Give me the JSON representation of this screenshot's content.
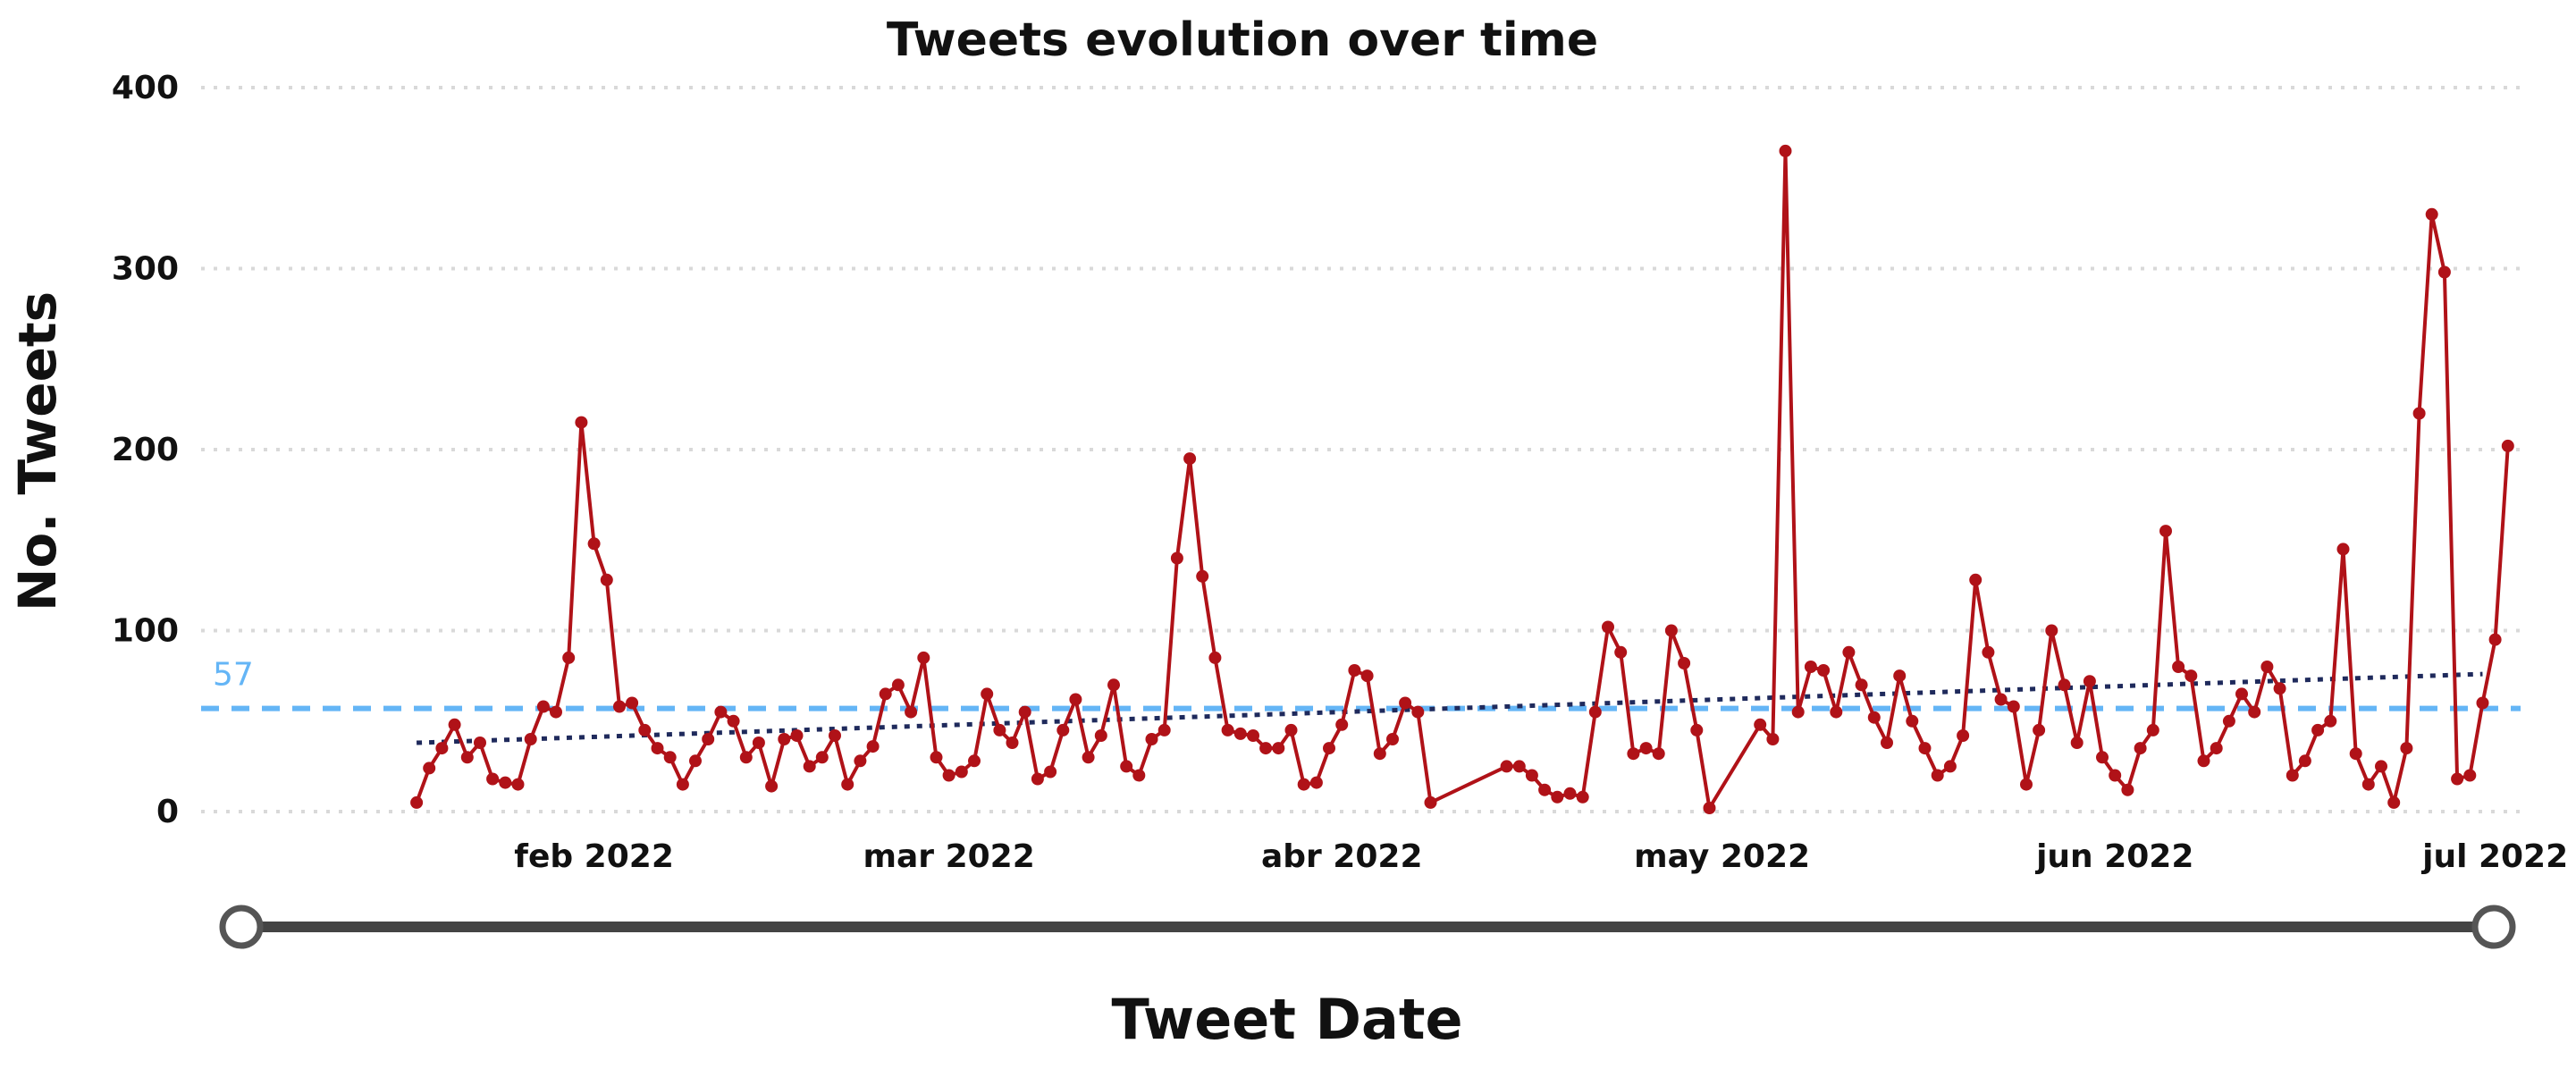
{
  "chart_data": {
    "type": "line",
    "title": "Tweets evolution over time",
    "xlabel": "Tweet Date",
    "ylabel": "No. Tweets",
    "ylim": [
      0,
      400
    ],
    "yticks": [
      0,
      100,
      200,
      300,
      400
    ],
    "xlim": [
      "2022-01-01",
      "2022-07-03"
    ],
    "xticks": [
      {
        "date": "2022-02-01",
        "label": "feb 2022"
      },
      {
        "date": "2022-03-01",
        "label": "mar 2022"
      },
      {
        "date": "2022-04-01",
        "label": "abr 2022"
      },
      {
        "date": "2022-05-01",
        "label": "may 2022"
      },
      {
        "date": "2022-06-01",
        "label": "jun 2022"
      },
      {
        "date": "2022-07-01",
        "label": "jul 2022"
      }
    ],
    "grid": true,
    "mean_line": {
      "value": 57,
      "label": "57",
      "color": "#64b5f6"
    },
    "trend_line": {
      "start": [
        "2022-01-18",
        38
      ],
      "end": [
        "2022-06-30",
        76
      ],
      "color": "#1f2a5c"
    },
    "series": [
      {
        "color": "#b01218",
        "points": [
          [
            "2022-01-18",
            5
          ],
          [
            "2022-01-19",
            24
          ],
          [
            "2022-01-20",
            35
          ],
          [
            "2022-01-21",
            48
          ],
          [
            "2022-01-22",
            30
          ],
          [
            "2022-01-23",
            38
          ],
          [
            "2022-01-24",
            18
          ],
          [
            "2022-01-25",
            16
          ],
          [
            "2022-01-26",
            15
          ],
          [
            "2022-01-27",
            40
          ],
          [
            "2022-01-28",
            58
          ],
          [
            "2022-01-29",
            55
          ],
          [
            "2022-01-30",
            85
          ],
          [
            "2022-01-31",
            215
          ],
          [
            "2022-02-01",
            148
          ],
          [
            "2022-02-02",
            128
          ],
          [
            "2022-02-03",
            58
          ],
          [
            "2022-02-04",
            60
          ],
          [
            "2022-02-05",
            45
          ],
          [
            "2022-02-06",
            35
          ],
          [
            "2022-02-07",
            30
          ],
          [
            "2022-02-08",
            15
          ],
          [
            "2022-02-09",
            28
          ],
          [
            "2022-02-10",
            40
          ],
          [
            "2022-02-11",
            55
          ],
          [
            "2022-02-12",
            50
          ],
          [
            "2022-02-13",
            30
          ],
          [
            "2022-02-14",
            38
          ],
          [
            "2022-02-15",
            14
          ],
          [
            "2022-02-16",
            40
          ],
          [
            "2022-02-17",
            42
          ],
          [
            "2022-02-18",
            25
          ],
          [
            "2022-02-19",
            30
          ],
          [
            "2022-02-20",
            42
          ],
          [
            "2022-02-21",
            15
          ],
          [
            "2022-02-22",
            28
          ],
          [
            "2022-02-23",
            36
          ],
          [
            "2022-02-24",
            65
          ],
          [
            "2022-02-25",
            70
          ],
          [
            "2022-02-26",
            55
          ],
          [
            "2022-02-27",
            85
          ],
          [
            "2022-02-28",
            30
          ],
          [
            "2022-03-01",
            20
          ],
          [
            "2022-03-02",
            22
          ],
          [
            "2022-03-03",
            28
          ],
          [
            "2022-03-04",
            65
          ],
          [
            "2022-03-05",
            45
          ],
          [
            "2022-03-06",
            38
          ],
          [
            "2022-03-07",
            55
          ],
          [
            "2022-03-08",
            18
          ],
          [
            "2022-03-09",
            22
          ],
          [
            "2022-03-10",
            45
          ],
          [
            "2022-03-11",
            62
          ],
          [
            "2022-03-12",
            30
          ],
          [
            "2022-03-13",
            42
          ],
          [
            "2022-03-14",
            70
          ],
          [
            "2022-03-15",
            25
          ],
          [
            "2022-03-16",
            20
          ],
          [
            "2022-03-17",
            40
          ],
          [
            "2022-03-18",
            45
          ],
          [
            "2022-03-19",
            140
          ],
          [
            "2022-03-20",
            195
          ],
          [
            "2022-03-21",
            130
          ],
          [
            "2022-03-22",
            85
          ],
          [
            "2022-03-23",
            45
          ],
          [
            "2022-03-24",
            43
          ],
          [
            "2022-03-25",
            42
          ],
          [
            "2022-03-26",
            35
          ],
          [
            "2022-03-27",
            35
          ],
          [
            "2022-03-28",
            45
          ],
          [
            "2022-03-29",
            15
          ],
          [
            "2022-03-30",
            16
          ],
          [
            "2022-03-31",
            35
          ],
          [
            "2022-04-01",
            48
          ],
          [
            "2022-04-02",
            78
          ],
          [
            "2022-04-03",
            75
          ],
          [
            "2022-04-04",
            32
          ],
          [
            "2022-04-05",
            40
          ],
          [
            "2022-04-06",
            60
          ],
          [
            "2022-04-07",
            55
          ],
          [
            "2022-04-08",
            5
          ],
          [
            "2022-04-14",
            25
          ],
          [
            "2022-04-15",
            25
          ],
          [
            "2022-04-16",
            20
          ],
          [
            "2022-04-17",
            12
          ],
          [
            "2022-04-18",
            8
          ],
          [
            "2022-04-19",
            10
          ],
          [
            "2022-04-20",
            8
          ],
          [
            "2022-04-21",
            55
          ],
          [
            "2022-04-22",
            102
          ],
          [
            "2022-04-23",
            88
          ],
          [
            "2022-04-24",
            32
          ],
          [
            "2022-04-25",
            35
          ],
          [
            "2022-04-26",
            32
          ],
          [
            "2022-04-27",
            100
          ],
          [
            "2022-04-28",
            82
          ],
          [
            "2022-04-29",
            45
          ],
          [
            "2022-04-30",
            2
          ],
          [
            "2022-05-04",
            48
          ],
          [
            "2022-05-05",
            40
          ],
          [
            "2022-05-06",
            365
          ],
          [
            "2022-05-07",
            55
          ],
          [
            "2022-05-08",
            80
          ],
          [
            "2022-05-09",
            78
          ],
          [
            "2022-05-10",
            55
          ],
          [
            "2022-05-11",
            88
          ],
          [
            "2022-05-12",
            70
          ],
          [
            "2022-05-13",
            52
          ],
          [
            "2022-05-14",
            38
          ],
          [
            "2022-05-15",
            75
          ],
          [
            "2022-05-16",
            50
          ],
          [
            "2022-05-17",
            35
          ],
          [
            "2022-05-18",
            20
          ],
          [
            "2022-05-19",
            25
          ],
          [
            "2022-05-20",
            42
          ],
          [
            "2022-05-21",
            128
          ],
          [
            "2022-05-22",
            88
          ],
          [
            "2022-05-23",
            62
          ],
          [
            "2022-05-24",
            58
          ],
          [
            "2022-05-25",
            15
          ],
          [
            "2022-05-26",
            45
          ],
          [
            "2022-05-27",
            100
          ],
          [
            "2022-05-28",
            70
          ],
          [
            "2022-05-29",
            38
          ],
          [
            "2022-05-30",
            72
          ],
          [
            "2022-05-31",
            30
          ],
          [
            "2022-06-01",
            20
          ],
          [
            "2022-06-02",
            12
          ],
          [
            "2022-06-03",
            35
          ],
          [
            "2022-06-04",
            45
          ],
          [
            "2022-06-05",
            155
          ],
          [
            "2022-06-06",
            80
          ],
          [
            "2022-06-07",
            75
          ],
          [
            "2022-06-08",
            28
          ],
          [
            "2022-06-09",
            35
          ],
          [
            "2022-06-10",
            50
          ],
          [
            "2022-06-11",
            65
          ],
          [
            "2022-06-12",
            55
          ],
          [
            "2022-06-13",
            80
          ],
          [
            "2022-06-14",
            68
          ],
          [
            "2022-06-15",
            20
          ],
          [
            "2022-06-16",
            28
          ],
          [
            "2022-06-17",
            45
          ],
          [
            "2022-06-18",
            50
          ],
          [
            "2022-06-19",
            145
          ],
          [
            "2022-06-20",
            32
          ],
          [
            "2022-06-21",
            15
          ],
          [
            "2022-06-22",
            25
          ],
          [
            "2022-06-23",
            5
          ],
          [
            "2022-06-24",
            35
          ],
          [
            "2022-06-25",
            220
          ],
          [
            "2022-06-26",
            330
          ],
          [
            "2022-06-27",
            298
          ],
          [
            "2022-06-28",
            18
          ],
          [
            "2022-06-29",
            20
          ],
          [
            "2022-06-30",
            60
          ],
          [
            "2022-07-01",
            95
          ],
          [
            "2022-07-02",
            202
          ]
        ]
      }
    ]
  }
}
